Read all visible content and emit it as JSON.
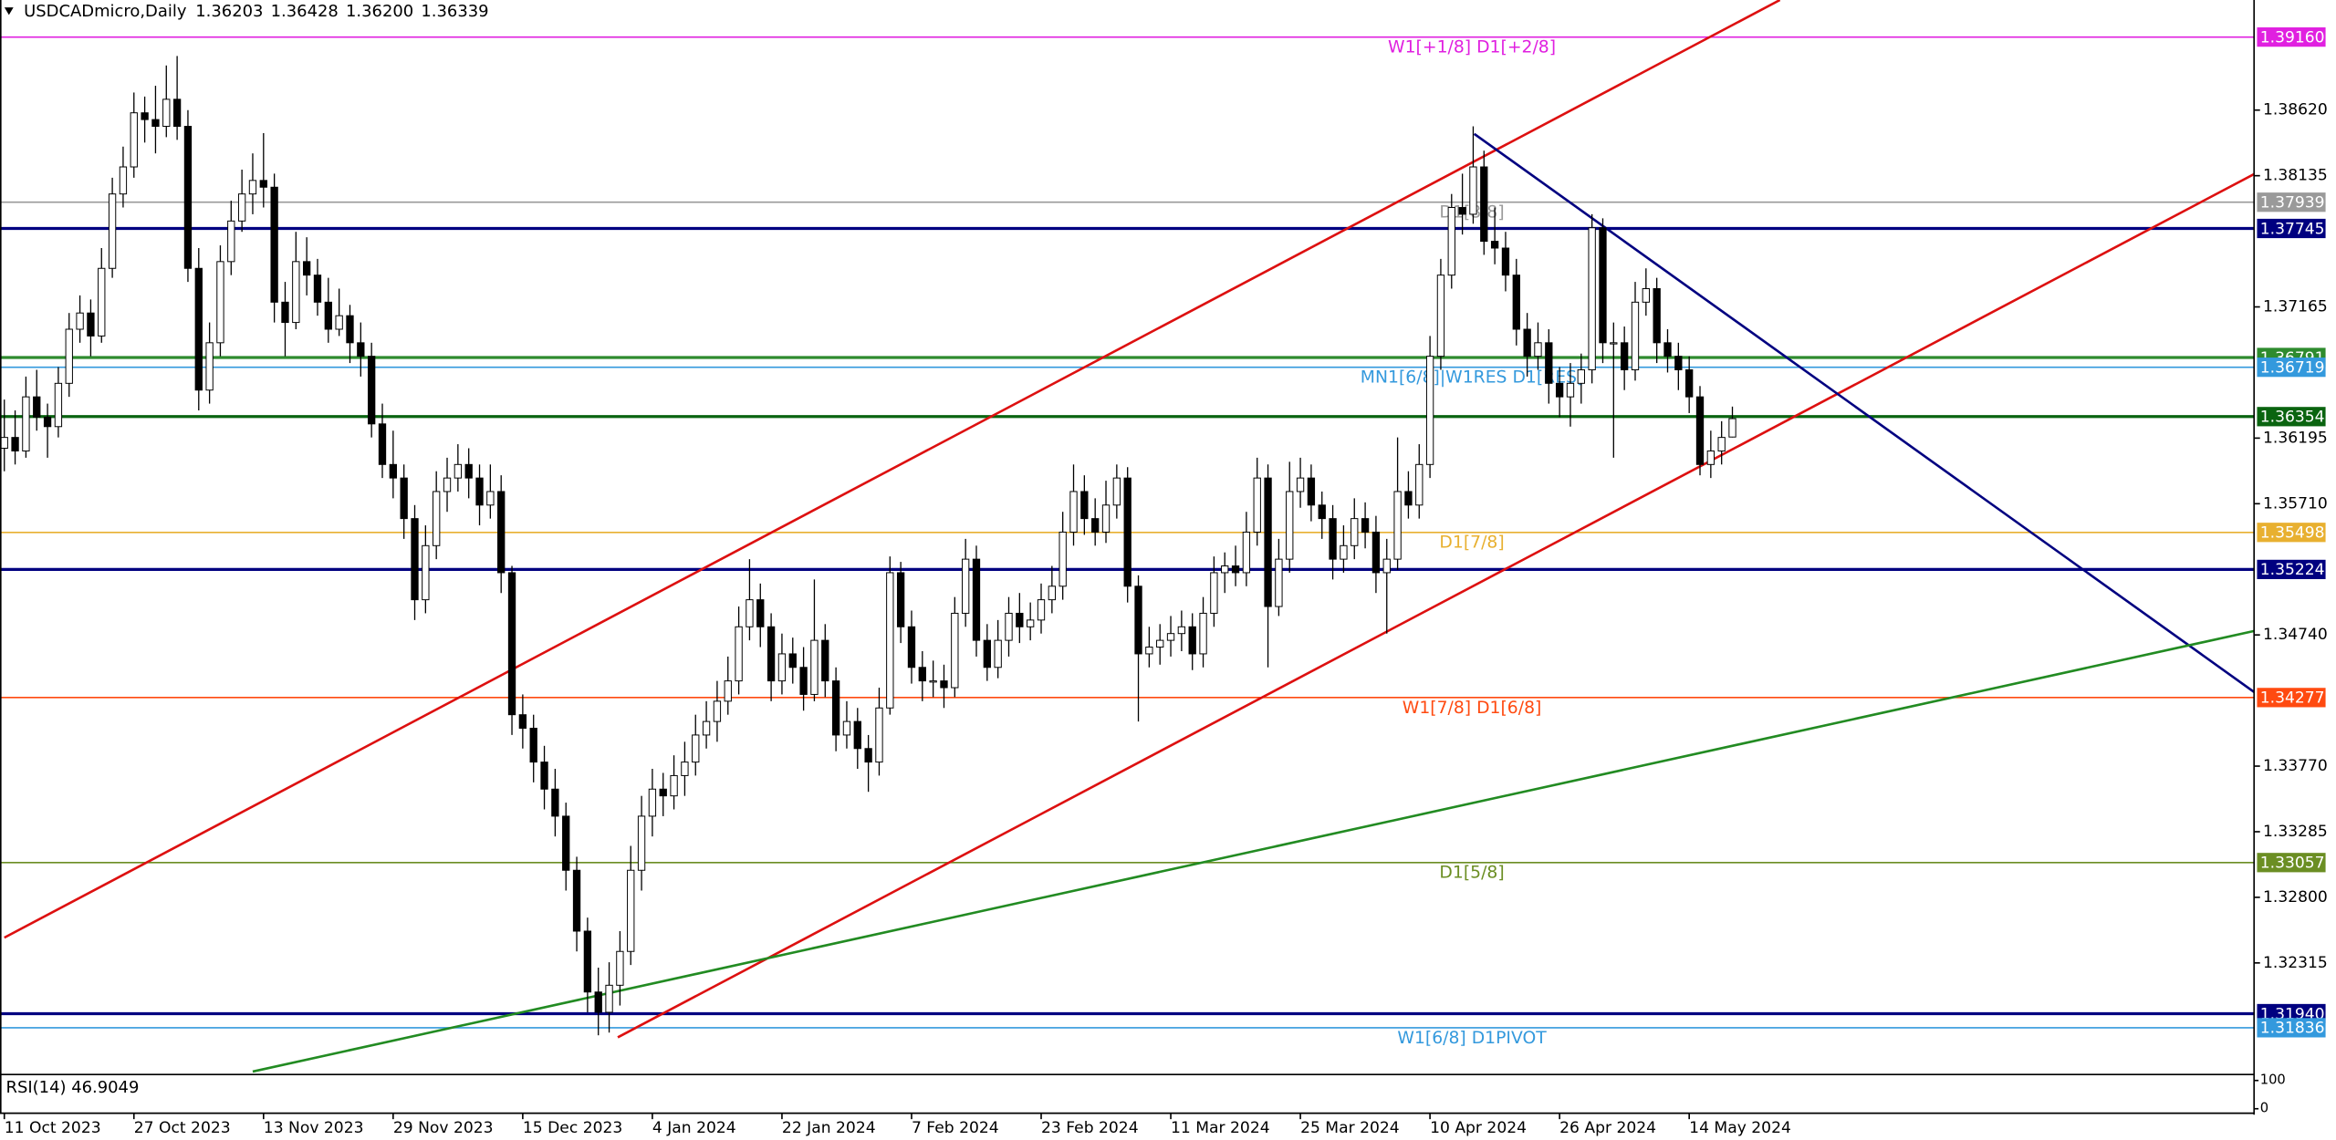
{
  "chart_data": {
    "type": "candlestick",
    "title": "USDCADmicro,Daily",
    "last_candle_labels": [
      "1.36203",
      "1.36428",
      "1.36200",
      "1.36339"
    ],
    "xlim": [
      -0.4,
      208.3
    ],
    "ylim": [
      1.3149,
      1.39434
    ],
    "yticks": [
      {
        "value": 1.3862,
        "label": "1.38620"
      },
      1.38135,
      1.37165,
      1.36195,
      {
        "value": 1.3571,
        "label": "1.35710"
      },
      {
        "value": 1.3474,
        "label": "1.34740"
      },
      {
        "value": 1.3377,
        "label": "1.33770"
      },
      1.33285,
      {
        "value": 1.328,
        "label": "1.32800"
      },
      1.32315
    ],
    "xticks": [
      {
        "value": 0,
        "label": "11 Oct 2023"
      },
      {
        "value": 12,
        "label": "27 Oct 2023"
      },
      {
        "value": 24,
        "label": "13 Nov 2023"
      },
      {
        "value": 36,
        "label": "29 Nov 2023"
      },
      {
        "value": 48,
        "label": "15 Dec 2023"
      },
      {
        "value": 60,
        "label": "4 Jan 2024"
      },
      {
        "value": 72,
        "label": "22 Jan 2024"
      },
      {
        "value": 84,
        "label": "7 Feb 2024"
      },
      {
        "value": 96,
        "label": "23 Feb 2024"
      },
      {
        "value": 108,
        "label": "11 Mar 2024"
      },
      {
        "value": 120,
        "label": "25 Mar 2024"
      },
      {
        "value": 132,
        "label": "10 Apr 2024"
      },
      {
        "value": 144,
        "label": "26 Apr 2024"
      },
      {
        "value": 156,
        "label": "14 May 2024"
      }
    ],
    "up_color": "#ffffff",
    "down_color": "#000000",
    "candles": [
      [
        1.3612,
        1.3648,
        1.3595,
        1.362
      ],
      [
        1.362,
        1.364,
        1.36,
        1.361
      ],
      [
        1.361,
        1.3665,
        1.3605,
        1.365
      ],
      [
        1.365,
        1.367,
        1.3625,
        1.3635
      ],
      [
        1.3635,
        1.3645,
        1.3605,
        1.3628
      ],
      [
        1.3628,
        1.3672,
        1.362,
        1.366
      ],
      [
        1.366,
        1.3712,
        1.365,
        1.37
      ],
      [
        1.37,
        1.3725,
        1.369,
        1.3712
      ],
      [
        1.3712,
        1.3722,
        1.368,
        1.3695
      ],
      [
        1.3695,
        1.376,
        1.369,
        1.3745
      ],
      [
        1.3745,
        1.3812,
        1.3738,
        1.38
      ],
      [
        1.38,
        1.3835,
        1.379,
        1.382
      ],
      [
        1.382,
        1.3875,
        1.3812,
        1.386
      ],
      [
        1.386,
        1.3872,
        1.3838,
        1.3855
      ],
      [
        1.3855,
        1.388,
        1.383,
        1.385
      ],
      [
        1.385,
        1.3895,
        1.3842,
        1.387
      ],
      [
        1.387,
        1.3902,
        1.384,
        1.385
      ],
      [
        1.385,
        1.3862,
        1.3735,
        1.3745
      ],
      [
        1.3745,
        1.376,
        1.364,
        1.3655
      ],
      [
        1.3655,
        1.3705,
        1.3645,
        1.369
      ],
      [
        1.369,
        1.3762,
        1.368,
        1.375
      ],
      [
        1.375,
        1.3795,
        1.374,
        1.378
      ],
      [
        1.378,
        1.3818,
        1.3772,
        1.38
      ],
      [
        1.38,
        1.383,
        1.3785,
        1.381
      ],
      [
        1.381,
        1.3845,
        1.379,
        1.3805
      ],
      [
        1.3805,
        1.3815,
        1.3705,
        1.372
      ],
      [
        1.372,
        1.3735,
        1.368,
        1.3705
      ],
      [
        1.3705,
        1.3772,
        1.37,
        1.375
      ],
      [
        1.375,
        1.3768,
        1.3725,
        1.374
      ],
      [
        1.374,
        1.3752,
        1.371,
        1.372
      ],
      [
        1.372,
        1.3738,
        1.369,
        1.37
      ],
      [
        1.37,
        1.373,
        1.3695,
        1.371
      ],
      [
        1.371,
        1.3718,
        1.3675,
        1.369
      ],
      [
        1.369,
        1.3705,
        1.3665,
        1.368
      ],
      [
        1.368,
        1.369,
        1.362,
        1.363
      ],
      [
        1.363,
        1.3645,
        1.359,
        1.36
      ],
      [
        1.36,
        1.3625,
        1.3575,
        1.359
      ],
      [
        1.359,
        1.36,
        1.3545,
        1.356
      ],
      [
        1.356,
        1.357,
        1.3485,
        1.35
      ],
      [
        1.35,
        1.3555,
        1.349,
        1.354
      ],
      [
        1.354,
        1.3595,
        1.353,
        1.358
      ],
      [
        1.358,
        1.3605,
        1.3565,
        1.359
      ],
      [
        1.359,
        1.3615,
        1.358,
        1.36
      ],
      [
        1.36,
        1.3612,
        1.3575,
        1.359
      ],
      [
        1.359,
        1.36,
        1.3555,
        1.357
      ],
      [
        1.357,
        1.36,
        1.356,
        1.358
      ],
      [
        1.358,
        1.3592,
        1.3505,
        1.352
      ],
      [
        1.352,
        1.3525,
        1.34,
        1.3415
      ],
      [
        1.3415,
        1.343,
        1.339,
        1.3405
      ],
      [
        1.3405,
        1.3415,
        1.3365,
        1.338
      ],
      [
        1.338,
        1.3392,
        1.3345,
        1.336
      ],
      [
        1.336,
        1.3375,
        1.3325,
        1.334
      ],
      [
        1.334,
        1.335,
        1.3285,
        1.33
      ],
      [
        1.33,
        1.331,
        1.324,
        1.3255
      ],
      [
        1.3255,
        1.3265,
        1.3195,
        1.321
      ],
      [
        1.321,
        1.3228,
        1.3178,
        1.3195
      ],
      [
        1.3195,
        1.3232,
        1.318,
        1.3215
      ],
      [
        1.3215,
        1.3255,
        1.32,
        1.324
      ],
      [
        1.324,
        1.3318,
        1.323,
        1.33
      ],
      [
        1.33,
        1.3355,
        1.3285,
        1.334
      ],
      [
        1.334,
        1.3375,
        1.3325,
        1.336
      ],
      [
        1.336,
        1.3372,
        1.334,
        1.3355
      ],
      [
        1.3355,
        1.3385,
        1.3345,
        1.337
      ],
      [
        1.337,
        1.3395,
        1.3355,
        1.338
      ],
      [
        1.338,
        1.3415,
        1.337,
        1.34
      ],
      [
        1.34,
        1.3425,
        1.339,
        1.341
      ],
      [
        1.341,
        1.344,
        1.3395,
        1.3425
      ],
      [
        1.3425,
        1.3458,
        1.3415,
        1.344
      ],
      [
        1.344,
        1.3495,
        1.343,
        1.348
      ],
      [
        1.348,
        1.353,
        1.347,
        1.35
      ],
      [
        1.35,
        1.3512,
        1.3465,
        1.348
      ],
      [
        1.348,
        1.349,
        1.3425,
        1.344
      ],
      [
        1.344,
        1.3475,
        1.343,
        1.346
      ],
      [
        1.346,
        1.3472,
        1.3438,
        1.345
      ],
      [
        1.345,
        1.3465,
        1.3418,
        1.343
      ],
      [
        1.343,
        1.3515,
        1.3425,
        1.347
      ],
      [
        1.347,
        1.3482,
        1.3428,
        1.344
      ],
      [
        1.344,
        1.345,
        1.3388,
        1.34
      ],
      [
        1.34,
        1.3425,
        1.339,
        1.341
      ],
      [
        1.341,
        1.342,
        1.3375,
        1.339
      ],
      [
        1.339,
        1.34,
        1.3358,
        1.338
      ],
      [
        1.338,
        1.3435,
        1.337,
        1.342
      ],
      [
        1.342,
        1.3532,
        1.3415,
        1.352
      ],
      [
        1.352,
        1.3528,
        1.3468,
        1.348
      ],
      [
        1.348,
        1.3492,
        1.3438,
        1.345
      ],
      [
        1.345,
        1.3462,
        1.3425,
        1.344
      ],
      [
        1.344,
        1.3455,
        1.3428,
        1.344
      ],
      [
        1.344,
        1.3452,
        1.342,
        1.3435
      ],
      [
        1.3435,
        1.3502,
        1.3428,
        1.349
      ],
      [
        1.349,
        1.3545,
        1.348,
        1.353
      ],
      [
        1.353,
        1.354,
        1.3458,
        1.347
      ],
      [
        1.347,
        1.3482,
        1.344,
        1.345
      ],
      [
        1.345,
        1.3485,
        1.3442,
        1.347
      ],
      [
        1.347,
        1.3502,
        1.3458,
        1.349
      ],
      [
        1.349,
        1.3505,
        1.3468,
        1.348
      ],
      [
        1.348,
        1.3498,
        1.347,
        1.3485
      ],
      [
        1.3485,
        1.3512,
        1.3475,
        1.35
      ],
      [
        1.35,
        1.3525,
        1.349,
        1.351
      ],
      [
        1.351,
        1.3565,
        1.35,
        1.355
      ],
      [
        1.355,
        1.36,
        1.354,
        1.358
      ],
      [
        1.358,
        1.3592,
        1.3548,
        1.356
      ],
      [
        1.356,
        1.3575,
        1.354,
        1.355
      ],
      [
        1.355,
        1.3588,
        1.3542,
        1.357
      ],
      [
        1.357,
        1.36,
        1.356,
        1.359
      ],
      [
        1.359,
        1.3598,
        1.3498,
        1.351
      ],
      [
        1.351,
        1.3518,
        1.341,
        1.346
      ],
      [
        1.346,
        1.348,
        1.345,
        1.3465
      ],
      [
        1.3465,
        1.3482,
        1.3452,
        1.347
      ],
      [
        1.347,
        1.3488,
        1.3458,
        1.3475
      ],
      [
        1.3475,
        1.3492,
        1.3462,
        1.348
      ],
      [
        1.348,
        1.349,
        1.3448,
        1.346
      ],
      [
        1.346,
        1.3502,
        1.345,
        1.349
      ],
      [
        1.349,
        1.3532,
        1.348,
        1.352
      ],
      [
        1.352,
        1.3535,
        1.3505,
        1.3525
      ],
      [
        1.3525,
        1.354,
        1.351,
        1.352
      ],
      [
        1.352,
        1.3565,
        1.351,
        1.355
      ],
      [
        1.355,
        1.3605,
        1.354,
        1.359
      ],
      [
        1.359,
        1.36,
        1.345,
        1.3495
      ],
      [
        1.3495,
        1.3545,
        1.3488,
        1.353
      ],
      [
        1.353,
        1.3602,
        1.352,
        1.358
      ],
      [
        1.358,
        1.3605,
        1.3568,
        1.359
      ],
      [
        1.359,
        1.36,
        1.3558,
        1.357
      ],
      [
        1.357,
        1.358,
        1.3545,
        1.356
      ],
      [
        1.356,
        1.357,
        1.3515,
        1.353
      ],
      [
        1.353,
        1.3555,
        1.352,
        1.354
      ],
      [
        1.354,
        1.3575,
        1.353,
        1.356
      ],
      [
        1.356,
        1.3572,
        1.3538,
        1.355
      ],
      [
        1.355,
        1.3562,
        1.3505,
        1.352
      ],
      [
        1.352,
        1.3545,
        1.3475,
        1.353
      ],
      [
        1.353,
        1.362,
        1.3522,
        1.358
      ],
      [
        1.358,
        1.3595,
        1.356,
        1.357
      ],
      [
        1.357,
        1.3615,
        1.356,
        1.36
      ],
      [
        1.36,
        1.3695,
        1.359,
        1.368
      ],
      [
        1.368,
        1.3752,
        1.367,
        1.374
      ],
      [
        1.374,
        1.38,
        1.373,
        1.379
      ],
      [
        1.379,
        1.3815,
        1.377,
        1.3785
      ],
      [
        1.3785,
        1.385,
        1.3778,
        1.382
      ],
      [
        1.382,
        1.3832,
        1.3755,
        1.3765
      ],
      [
        1.3765,
        1.379,
        1.3748,
        1.376
      ],
      [
        1.376,
        1.3772,
        1.3728,
        1.374
      ],
      [
        1.374,
        1.3752,
        1.3688,
        1.37
      ],
      [
        1.37,
        1.3712,
        1.3665,
        1.368
      ],
      [
        1.368,
        1.3705,
        1.367,
        1.369
      ],
      [
        1.369,
        1.37,
        1.3645,
        1.366
      ],
      [
        1.366,
        1.3672,
        1.3635,
        1.365
      ],
      [
        1.365,
        1.3675,
        1.3628,
        1.366
      ],
      [
        1.366,
        1.3682,
        1.3645,
        1.367
      ],
      [
        1.367,
        1.3785,
        1.366,
        1.3775
      ],
      [
        1.3775,
        1.3782,
        1.3675,
        1.369
      ],
      [
        1.369,
        1.3705,
        1.3605,
        1.369
      ],
      [
        1.369,
        1.3702,
        1.3655,
        1.367
      ],
      [
        1.367,
        1.3735,
        1.3662,
        1.372
      ],
      [
        1.372,
        1.3745,
        1.371,
        1.373
      ],
      [
        1.373,
        1.3738,
        1.3675,
        1.369
      ],
      [
        1.369,
        1.37,
        1.3668,
        1.368
      ],
      [
        1.368,
        1.369,
        1.3655,
        1.367
      ],
      [
        1.367,
        1.368,
        1.3638,
        1.365
      ],
      [
        1.365,
        1.3658,
        1.3592,
        1.36
      ],
      [
        1.36,
        1.3625,
        1.359,
        1.361
      ],
      [
        1.361,
        1.3632,
        1.36,
        1.362
      ],
      [
        1.36203,
        1.36428,
        1.362,
        1.36339
      ]
    ],
    "levels": [
      {
        "price": {
          "value": 1.3916,
          "label": "1.39160"
        },
        "color": "#e020e0",
        "width": 1,
        "label": "W1[+1/8] D1[+2/8]"
      },
      {
        "price": 1.37939,
        "color": "#9a9a9a",
        "width": 1,
        "label": "D1[8/8]"
      },
      {
        "price": 1.37745,
        "color": "#000080",
        "width": 2
      },
      {
        "price": 1.36791,
        "color": "#2e8b2e",
        "width": 2
      },
      {
        "price": 1.36719,
        "color": "#3399dd",
        "width": 1,
        "label": "MN1[6/8]|W1RES D1[RES]"
      },
      {
        "price": 1.36354,
        "color": "#0a6410",
        "width": 2
      },
      {
        "price": 1.35498,
        "color": "#e8b030",
        "width": 1,
        "label": "D1[7/8]"
      },
      {
        "price": 1.35224,
        "color": "#000080",
        "width": 2
      },
      {
        "price": 1.34277,
        "color": "#ff4a10",
        "width": 1,
        "label": "W1[7/8] D1[6/8]"
      },
      {
        "price": 1.33057,
        "color": "#6b8e23",
        "width": 1,
        "label": "D1[5/8]"
      },
      {
        "price": {
          "value": 1.3194,
          "label": "1.31940"
        },
        "color": "#000080",
        "width": 2
      },
      {
        "price": 1.31836,
        "color": "#3399dd",
        "width": 1,
        "label": "W1[6/8] D1PIVOT"
      }
    ],
    "trendlines": [
      {
        "color": "#dd1010",
        "points": [
          [
            0,
            1.32502
          ],
          [
            164.4,
            1.39434
          ]
        ]
      },
      {
        "color": "#dd1010",
        "points": [
          [
            56.8,
            1.31765
          ],
          [
            208.3,
            1.38147
          ]
        ]
      },
      {
        "color": "#000080",
        "points": [
          [
            136.1,
            1.38444
          ],
          [
            208.3,
            1.34318
          ]
        ]
      },
      {
        "color": "#228b22",
        "points": [
          [
            23,
            1.31512
          ],
          [
            208.3,
            1.34769
          ]
        ]
      }
    ],
    "rsi": {
      "label": "RSI(14) 46.9049",
      "ylim": [
        0,
        100
      ],
      "yticks": [
        100,
        0
      ]
    }
  }
}
